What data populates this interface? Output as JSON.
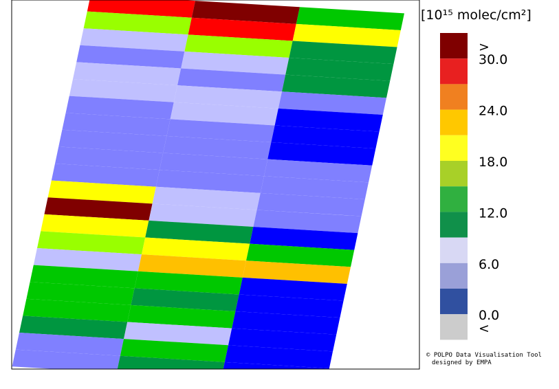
{
  "legend": {
    "unit": "[10¹⁵ molec/cm²]",
    "colors": [
      "#7f0000",
      "#e82020",
      "#f08020",
      "#ffc800",
      "#ffff20",
      "#a8d028",
      "#30b040",
      "#10904a",
      "#d8d8f4",
      "#9aa0d8",
      "#3050a0",
      "#cccccc"
    ],
    "labels": [
      ">",
      "30.0",
      "24.0",
      "18.0",
      "12.0",
      "6.0",
      "0.0",
      "<"
    ]
  },
  "credit": [
    "© POLPO Data Visualisation Tool",
    "designed by EMPA"
  ],
  "swath": [
    [
      "#ff0000",
      "#800000",
      "#00c800"
    ],
    [
      "#99ff00",
      "#ff0000",
      "#ffff00"
    ],
    [
      "#c0c0ff",
      "#99ff00",
      "#009640"
    ],
    [
      "#8080ff",
      "#c0c0ff",
      "#009640"
    ],
    [
      "#c0c0ff",
      "#8080ff",
      "#009640"
    ],
    [
      "#c0c0ff",
      "#c0c0ff",
      "#8080ff"
    ],
    [
      "#8080ff",
      "#c0c0ff",
      "#0000ff"
    ],
    [
      "#8080ff",
      "#8080ff",
      "#0000ff"
    ],
    [
      "#8080ff",
      "#8080ff",
      "#0000ff"
    ],
    [
      "#8080ff",
      "#8080ff",
      "#8080ff"
    ],
    [
      "#8080ff",
      "#8080ff",
      "#8080ff"
    ],
    [
      "#ffff00",
      "#c0c0ff",
      "#8080ff"
    ],
    [
      "#800000",
      "#c0c0ff",
      "#8080ff"
    ],
    [
      "#ffff00",
      "#009640",
      "#0000ff"
    ],
    [
      "#99ff00",
      "#ffff00",
      "#00c800"
    ],
    [
      "#c0c0ff",
      "#ffc000",
      "#ffc000"
    ],
    [
      "#00c800",
      "#00c800",
      "#0000ff"
    ],
    [
      "#00c800",
      "#009640",
      "#0000ff"
    ],
    [
      "#00c800",
      "#00c800",
      "#0000ff"
    ],
    [
      "#009640",
      "#c0c0ff",
      "#0000ff"
    ],
    [
      "#8080ff",
      "#00c800",
      "#0000ff"
    ],
    [
      "#8080ff",
      "#009640",
      "#0000ff"
    ]
  ]
}
